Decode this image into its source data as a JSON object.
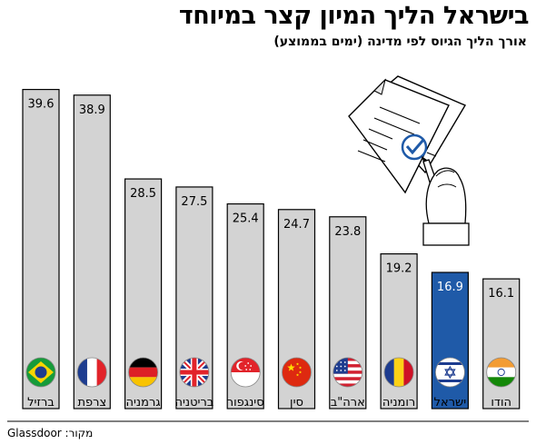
{
  "title": "בישראל הליך המיון קצר במיוחד",
  "subtitle": "אורך הליך הגיוס לפי מדינה (ימים בממוצע)",
  "source": "מקור: Glassdoor",
  "colors": {
    "bar": "#d3d3d3",
    "highlight": "#1f5aa8",
    "outline": "#000000"
  },
  "chart_data": {
    "type": "bar",
    "title": "בישראל הליך המיון קצר במיוחד",
    "subtitle": "אורך הליך הגיוס לפי מדינה (ימים בממוצע)",
    "categories": [
      "ברזיל",
      "צרפת",
      "גרמניה",
      "בריטניה",
      "סינגפור",
      "סין",
      "ארה\"ב",
      "רומניה",
      "ישראל",
      "הודו"
    ],
    "values": [
      39.6,
      38.9,
      28.5,
      27.5,
      25.4,
      24.7,
      23.8,
      19.2,
      16.9,
      16.1
    ],
    "value_labels": [
      "39.6",
      "38.9",
      "28.5",
      "27.5",
      "25.4",
      "24.7",
      "23.8",
      "19.2",
      "16.9",
      "16.1"
    ],
    "highlight": "ישראל",
    "flags": [
      "brazil-flag",
      "france-flag",
      "germany-flag",
      "uk-flag",
      "singapore-flag",
      "china-flag",
      "usa-flag",
      "romania-flag",
      "israel-flag",
      "india-flag"
    ],
    "ylim": [
      0,
      40
    ],
    "grid": false,
    "legend": "none"
  }
}
